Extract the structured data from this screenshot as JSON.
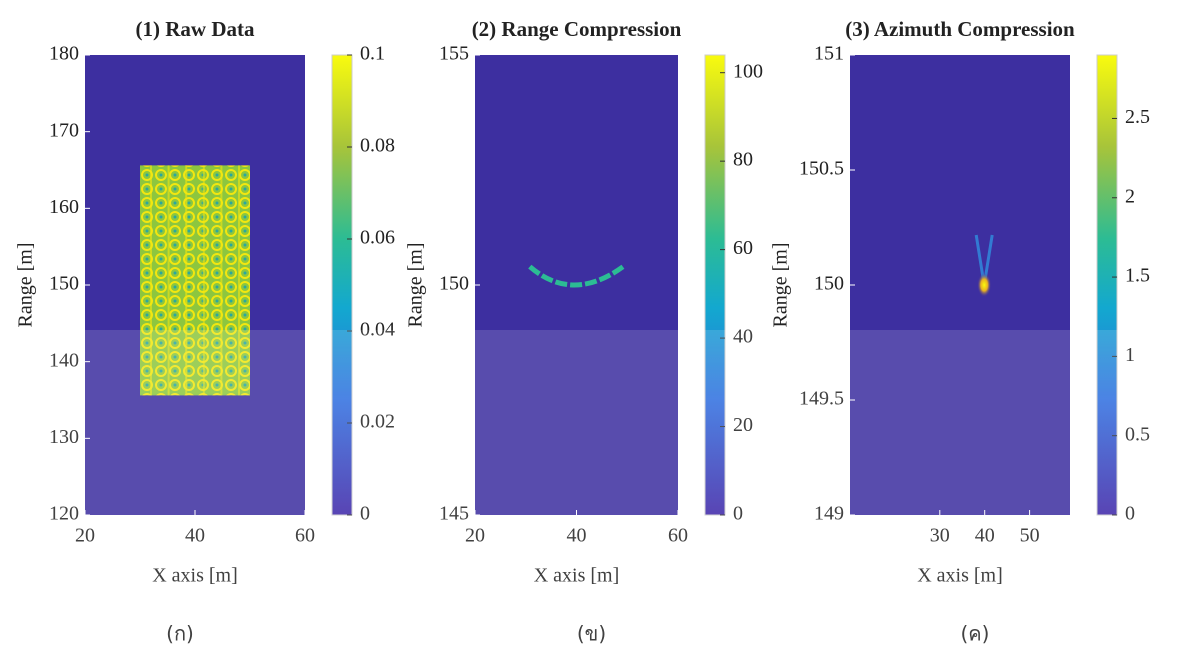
{
  "chart_data": [
    {
      "type": "heatmap",
      "title": "(1) Raw Data",
      "xlabel": "X axis [m]",
      "ylabel": "Range [m]",
      "xlim": [
        20,
        60
      ],
      "xticks": [
        20,
        40,
        60
      ],
      "ylim": [
        120,
        180
      ],
      "yticks": [
        120,
        130,
        140,
        150,
        160,
        170,
        180
      ],
      "colorbar": {
        "lim": [
          0,
          0.1
        ],
        "ticks": [
          0,
          0.02,
          0.04,
          0.06,
          0.08,
          0.1
        ]
      },
      "caption": "(ก)"
    },
    {
      "type": "heatmap",
      "title": "(2) Range Compression",
      "xlabel": "X axis [m]",
      "ylabel": "Range [m]",
      "xlim": [
        20,
        60
      ],
      "xticks": [
        20,
        40,
        60
      ],
      "ylim": [
        145,
        155
      ],
      "yticks": [
        145,
        150,
        155
      ],
      "colorbar": {
        "lim": [
          0,
          104
        ],
        "ticks": [
          0,
          20,
          40,
          60,
          80,
          100
        ]
      },
      "caption": "(ข)"
    },
    {
      "type": "heatmap",
      "title": "(3) Azimuth Compression",
      "xlabel": "X axis [m]",
      "ylabel": "Range [m]",
      "xlim": [
        10,
        59
      ],
      "xticks": [
        30,
        40,
        50
      ],
      "ylim": [
        149,
        151
      ],
      "yticks": [
        149,
        149.5,
        150,
        150.5,
        151
      ],
      "colorbar": {
        "lim": [
          0,
          2.9
        ],
        "ticks": [
          0,
          0.5,
          1,
          1.5,
          2,
          2.5
        ]
      },
      "caption": "(ค)"
    }
  ]
}
